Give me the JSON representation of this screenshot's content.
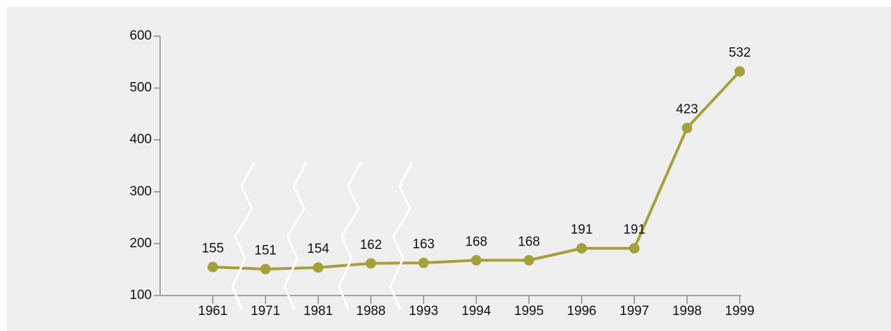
{
  "chart_data": {
    "type": "line",
    "categories": [
      "1961",
      "1971",
      "1981",
      "1988",
      "1993",
      "1994",
      "1995",
      "1996",
      "1997",
      "1998",
      "1999"
    ],
    "values": [
      155,
      151,
      154,
      162,
      163,
      168,
      168,
      191,
      191,
      423,
      532
    ],
    "color": "#a6a03a",
    "ylim": [
      100,
      600
    ],
    "yticks": [
      100,
      200,
      300,
      400,
      500,
      600
    ],
    "grid": false
  }
}
